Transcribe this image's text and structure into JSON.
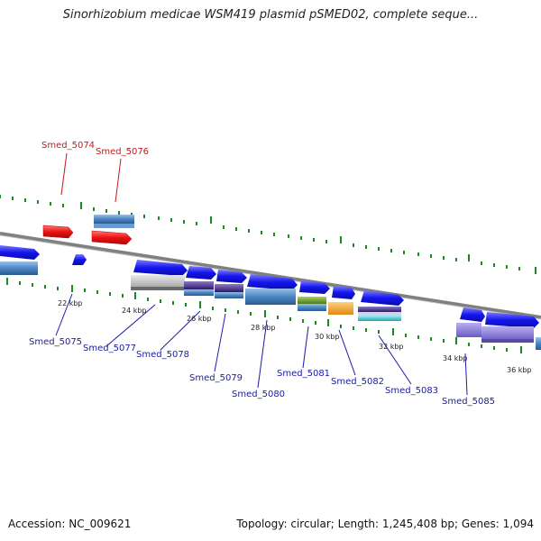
{
  "header": {
    "title": "Sinorhizobium medicae WSM419 plasmid pSMED02, complete seque..."
  },
  "footer": {
    "accession": "Accession: NC_009621",
    "summary": "Topology: circular; Length: 1,245,408 bp; Genes: 1,094"
  },
  "map": {
    "colors": {
      "backbone": "#808080",
      "tick": "#1a8a1a",
      "gene_fwd": "#1515ee",
      "gene_red": "#ee1111",
      "label_blue": "#1a1aa8",
      "label_red": "#c41a1a",
      "steel": "#4a86c4",
      "gray": "#c6c6c6",
      "navy": "#4a3a8a",
      "olive": "#6a9a2a",
      "orange": "#f0a020",
      "cyan": "#30c8d0",
      "violet": "#8070d0"
    },
    "scale_labels": [
      "22 kbp",
      "24 kbp",
      "26 kbp",
      "28 kbp",
      "30 kbp",
      "32 kbp",
      "34 kbp",
      "36 kbp"
    ],
    "red_genes": [
      "Smed_5074",
      "Smed_5076"
    ],
    "blue_genes": [
      "Smed_5075",
      "Smed_5077",
      "Smed_5078",
      "Smed_5079",
      "Smed_5080",
      "Smed_5081",
      "Smed_5082",
      "Smed_5083",
      "Smed_5085"
    ]
  }
}
